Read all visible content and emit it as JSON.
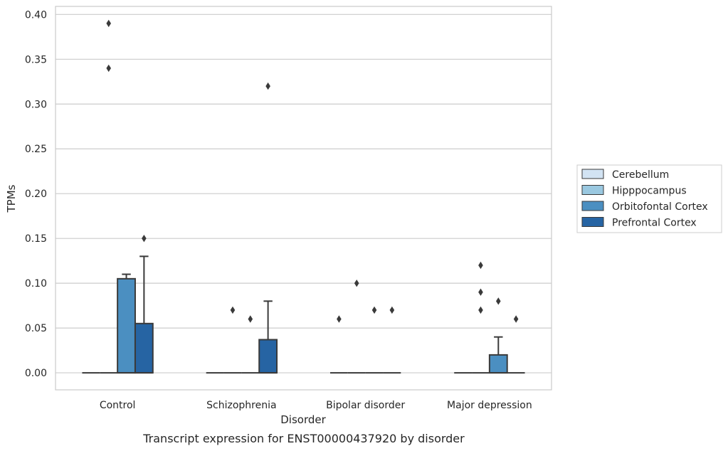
{
  "chart_data": {
    "type": "box",
    "xlabel": "Disorder",
    "ylabel": "TPMs",
    "caption": "Transcript expression for ENST00000437920 by disorder",
    "ylim": [
      -0.019,
      0.409
    ],
    "yticks": [
      "0.00",
      "0.05",
      "0.10",
      "0.15",
      "0.20",
      "0.25",
      "0.30",
      "0.35",
      "0.40"
    ],
    "grid": "horizontal",
    "legend_position": "right",
    "categories": [
      "Control",
      "Schizophrenia",
      "Bipolar disorder",
      "Major depression"
    ],
    "series": [
      {
        "name": "Cerebellum",
        "color": "#d2e3f3",
        "boxes": [
          {
            "q1": 0,
            "median": 0,
            "q3": 0,
            "whisker_low": 0,
            "whisker_high": 0,
            "outliers": []
          },
          {
            "q1": 0,
            "median": 0,
            "q3": 0,
            "whisker_low": 0,
            "whisker_high": 0,
            "outliers": []
          },
          {
            "q1": 0,
            "median": 0,
            "q3": 0,
            "whisker_low": 0,
            "whisker_high": 0,
            "outliers": [
              0.06
            ]
          },
          {
            "q1": 0,
            "median": 0,
            "q3": 0,
            "whisker_low": 0,
            "whisker_high": 0,
            "outliers": []
          }
        ]
      },
      {
        "name": "Hipppocampus",
        "color": "#9ac8e0",
        "boxes": [
          {
            "q1": 0,
            "median": 0,
            "q3": 0,
            "whisker_low": 0,
            "whisker_high": 0,
            "outliers": [
              0.34,
              0.39
            ]
          },
          {
            "q1": 0,
            "median": 0,
            "q3": 0,
            "whisker_low": 0,
            "whisker_high": 0,
            "outliers": [
              0.07
            ]
          },
          {
            "q1": 0,
            "median": 0,
            "q3": 0,
            "whisker_low": 0,
            "whisker_high": 0,
            "outliers": [
              0.1
            ]
          },
          {
            "q1": 0,
            "median": 0,
            "q3": 0,
            "whisker_low": 0,
            "whisker_high": 0,
            "outliers": [
              0.07,
              0.09,
              0.12
            ]
          }
        ]
      },
      {
        "name": "Orbitofontal Cortex",
        "color": "#4b8fc1",
        "boxes": [
          {
            "q1": 0,
            "median": 0,
            "q3": 0.105,
            "whisker_low": 0,
            "whisker_high": 0.11,
            "outliers": []
          },
          {
            "q1": 0,
            "median": 0,
            "q3": 0,
            "whisker_low": 0,
            "whisker_high": 0,
            "outliers": [
              0.06
            ]
          },
          {
            "q1": 0,
            "median": 0,
            "q3": 0,
            "whisker_low": 0,
            "whisker_high": 0,
            "outliers": [
              0.07
            ]
          },
          {
            "q1": 0,
            "median": 0,
            "q3": 0.02,
            "whisker_low": 0,
            "whisker_high": 0.04,
            "outliers": [
              0.08
            ]
          }
        ]
      },
      {
        "name": "Prefrontal Cortex",
        "color": "#2664a3",
        "boxes": [
          {
            "q1": 0,
            "median": 0,
            "q3": 0.055,
            "whisker_low": 0,
            "whisker_high": 0.13,
            "outliers": [
              0.15
            ]
          },
          {
            "q1": 0,
            "median": 0,
            "q3": 0.037,
            "whisker_low": 0,
            "whisker_high": 0.08,
            "outliers": [
              0.32
            ]
          },
          {
            "q1": 0,
            "median": 0,
            "q3": 0,
            "whisker_low": 0,
            "whisker_high": 0,
            "outliers": [
              0.07
            ]
          },
          {
            "q1": 0,
            "median": 0,
            "q3": 0,
            "whisker_low": 0,
            "whisker_high": 0,
            "outliers": [
              0.06
            ]
          }
        ]
      }
    ]
  }
}
